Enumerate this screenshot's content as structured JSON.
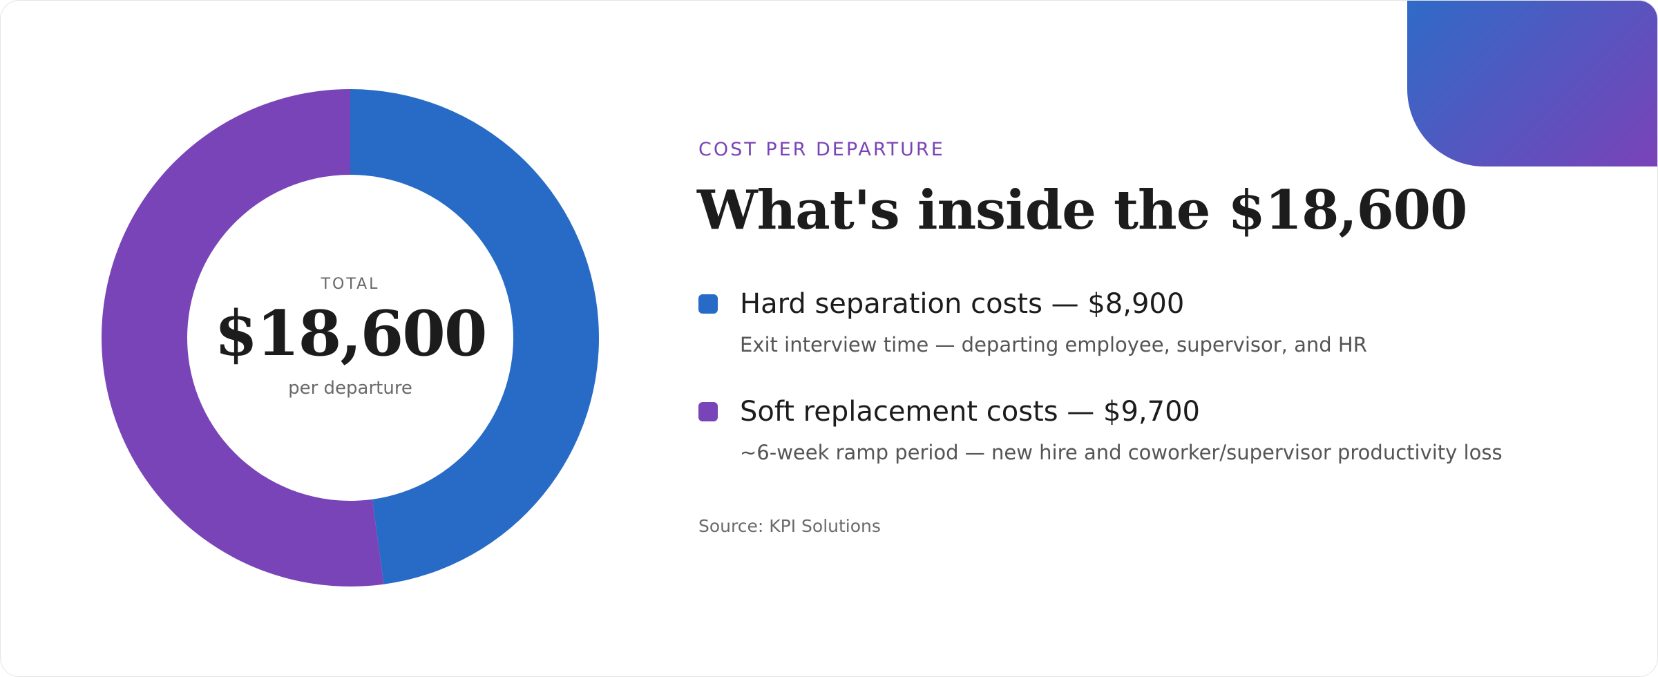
{
  "colors": {
    "hard": "#276bc6",
    "soft": "#7844b7",
    "accent_start": "#2f6bc7",
    "accent_end": "#7a42b8",
    "eyebrow": "#7a44b6"
  },
  "header": {
    "eyebrow": "COST PER DEPARTURE",
    "headline": "What's inside the $18,600"
  },
  "center": {
    "label": "TOTAL",
    "value": "$18,600",
    "sub": "per departure"
  },
  "legend": [
    {
      "title": "Hard separation costs — $8,900",
      "description": "Exit interview time — departing employee, supervisor, and HR"
    },
    {
      "title": "Soft replacement costs — $9,700",
      "description": "~6-week ramp period — new hire and coworker/supervisor productivity loss"
    }
  ],
  "source": "Source: KPI Solutions",
  "chart_data": {
    "type": "pie",
    "style": "donut",
    "total": 18600,
    "categories": [
      "Hard separation costs",
      "Soft replacement costs"
    ],
    "values": [
      8900,
      9700
    ],
    "colors": [
      "#276bc6",
      "#7844b7"
    ],
    "title": "What's inside the $18,600",
    "legend_position": "right"
  }
}
